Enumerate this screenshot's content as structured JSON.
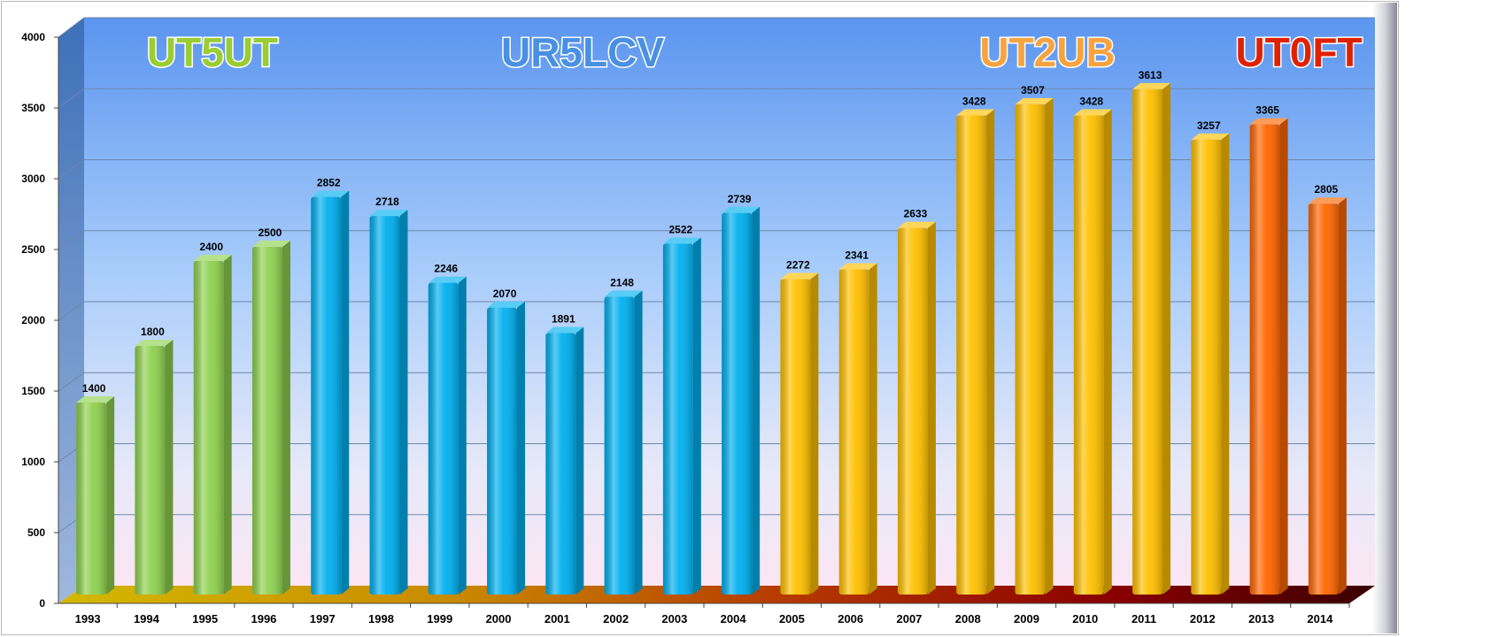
{
  "chart_data": {
    "type": "bar",
    "categories": [
      "1993",
      "1994",
      "1995",
      "1996",
      "1997",
      "1998",
      "1999",
      "2000",
      "2001",
      "2002",
      "2003",
      "2004",
      "2005",
      "2006",
      "2007",
      "2008",
      "2009",
      "2010",
      "2011",
      "2012",
      "2013",
      "2014"
    ],
    "values": [
      1400,
      1800,
      2400,
      2500,
      2852,
      2718,
      2246,
      2070,
      1891,
      2148,
      2522,
      2739,
      2272,
      2341,
      2633,
      3428,
      3507,
      3428,
      3613,
      3257,
      3365,
      2805
    ],
    "ylim": [
      0,
      4000
    ],
    "yticks": [
      0,
      500,
      1000,
      1500,
      2000,
      2500,
      3000,
      3500,
      4000
    ],
    "grid": true,
    "data_labels": true,
    "groups": [
      {
        "label": "UT5UT",
        "color": "#8fd14f",
        "from": "1993",
        "to": "1996"
      },
      {
        "label": "UR5LCV",
        "color": "#00b0f0",
        "from": "1997",
        "to": "2004"
      },
      {
        "label": "UT2UB",
        "color": "#ffc000",
        "from": "2005",
        "to": "2012"
      },
      {
        "label": "UT0FT",
        "color": "#ff6600",
        "from": "2013",
        "to": "2014"
      }
    ],
    "operator_label_colors": [
      "#9acd32",
      "#4a90e2",
      "#f7a340",
      "#e02000"
    ]
  }
}
